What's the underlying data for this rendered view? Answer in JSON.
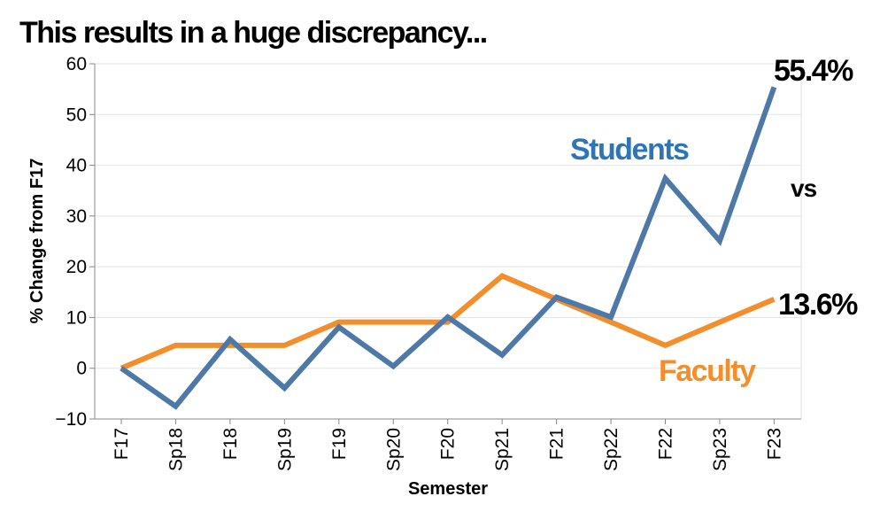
{
  "headline": "This results in a huge discrepancy...",
  "chart_data": {
    "type": "line",
    "title": "",
    "xlabel": "Semester",
    "ylabel": "% Change from F17",
    "ylim": [
      -10,
      60
    ],
    "yticks": [
      60,
      50,
      40,
      30,
      20,
      10,
      0,
      -10
    ],
    "grid": true,
    "categories": [
      "F17",
      "Sp18",
      "F18",
      "Sp19",
      "F19",
      "Sp20",
      "F20",
      "Sp21",
      "F21",
      "Sp22",
      "F22",
      "Sp23",
      "F23"
    ],
    "series": [
      {
        "name": "Students",
        "color": "#4e79a7",
        "values": [
          0,
          -7.5,
          5.7,
          -3.9,
          8.1,
          0.4,
          10.1,
          2.6,
          14.0,
          10.1,
          37.4,
          25.1,
          55.4
        ]
      },
      {
        "name": "Faculty",
        "color": "#f28e2b",
        "values": [
          0,
          4.5,
          4.5,
          4.5,
          9.1,
          9.1,
          9.1,
          18.2,
          13.6,
          9.1,
          4.5,
          9.1,
          13.6
        ]
      }
    ],
    "annotations": {
      "students_label": "Students",
      "faculty_label": "Faculty",
      "students_end": "55.4%",
      "faculty_end": "13.6%",
      "vs": "vs"
    }
  }
}
